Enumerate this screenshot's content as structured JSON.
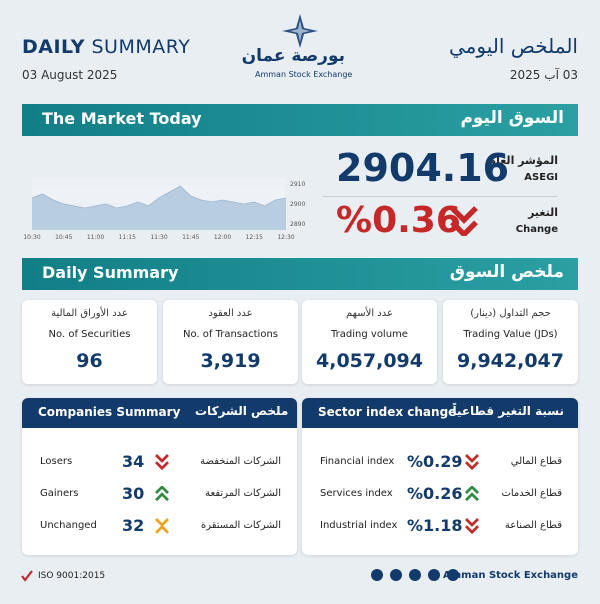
{
  "header": {
    "title_bold": "DAILY",
    "title_light": "SUMMARY",
    "date": "03  August 2025",
    "title_ar": "الملخص اليومي",
    "date_ar": "03 آب 2025",
    "logo_ar": "بورصة عمان",
    "logo_en": "Amman Stock Exchange"
  },
  "market_today": {
    "title": "The Market Today",
    "title_ar": "السوق اليوم",
    "index_label_ar": "المؤشر العام",
    "index_label": "ASEGI",
    "index_value": "2904.16",
    "change_label_ar": "التغير",
    "change_label": "Change",
    "change_value": "%0.36",
    "change_direction": "down",
    "chart": {
      "type": "area",
      "x": [
        "10:30",
        null,
        null,
        "10:45",
        null,
        null,
        "11:00",
        null,
        null,
        "11:15",
        null,
        null,
        "11:30",
        null,
        null,
        "11:45",
        null,
        null,
        "12:00",
        null,
        null,
        "12:15",
        null,
        null,
        "12:30"
      ],
      "values": [
        2903,
        2905,
        2902,
        2900,
        2899,
        2898,
        2899,
        2900,
        2898,
        2899,
        2901,
        2899,
        2903,
        2906,
        2909,
        2904,
        2902,
        2901,
        2902,
        2901,
        2900,
        2901,
        2899,
        2902,
        2903
      ],
      "ylim": [
        2887,
        2913
      ],
      "yticks": [
        2890,
        2900,
        2910
      ],
      "color": "#b9cde0"
    }
  },
  "daily_summary": {
    "title": "Daily Summary",
    "title_ar": "ملخص السوق",
    "cards": [
      {
        "label_ar": "عدد الأوراق المالية",
        "label": "No. of Securities",
        "value": "96"
      },
      {
        "label_ar": "عدد العقود",
        "label": "No. of Transactions",
        "value": "3,919"
      },
      {
        "label_ar": "عدد الأسهم",
        "label": "Trading volume",
        "value": "4,057,094"
      },
      {
        "label_ar": "حجم التداول (دينار)",
        "label": "Trading Value (JDs)",
        "value": "9,942,047"
      }
    ]
  },
  "companies_summary": {
    "title": "Companies Summary",
    "title_ar": "ملخص الشركات",
    "rows": [
      {
        "label": "Losers",
        "value": "34",
        "direction": "down",
        "label_ar": "الشركات المنخفضة"
      },
      {
        "label": "Gainers",
        "value": "30",
        "direction": "up",
        "label_ar": "الشركات المرتفعة"
      },
      {
        "label": "Unchanged",
        "value": "32",
        "direction": "flat",
        "label_ar": "الشركات المستقرة"
      }
    ]
  },
  "sector_index_change": {
    "title": "Sector index change",
    "title_ar": "نسبة التغير قطاعياً",
    "rows": [
      {
        "label": "Financial index",
        "value": "%0.29",
        "direction": "down",
        "label_ar": "قطاع المالي"
      },
      {
        "label": "Services index",
        "value": "%0.26",
        "direction": "up",
        "label_ar": "قطاع الخدمات"
      },
      {
        "label": "Industrial index",
        "value": "%1.18",
        "direction": "down",
        "label_ar": "قطاع الصناعة"
      }
    ]
  },
  "footer": {
    "iso": "ISO 9001:2015",
    "org": "Amman Stock Exchange"
  }
}
